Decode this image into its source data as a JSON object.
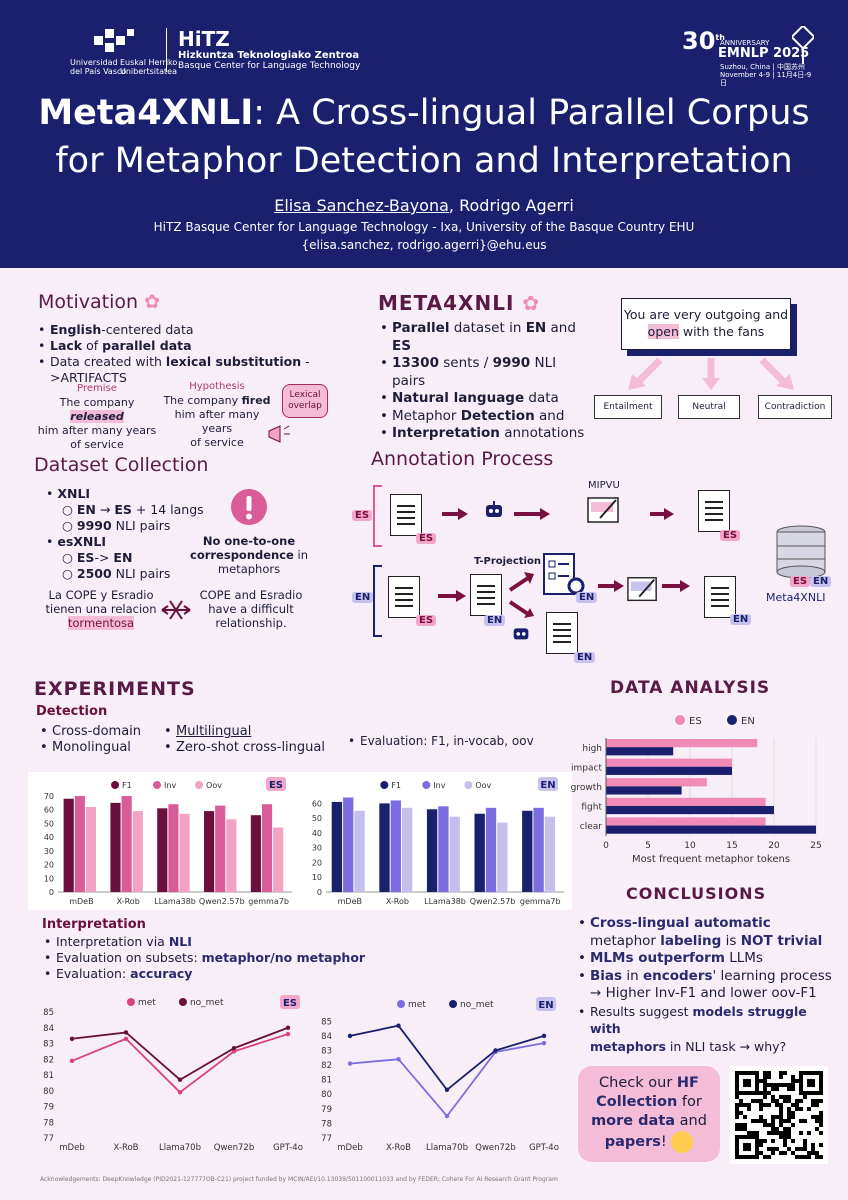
{
  "header": {
    "upv_logo_left": "Universidad\ndel País Vasco",
    "upv_logo_right": "Euskal Herriko\nUnibertsitatea",
    "hitz_name": "HiTZ",
    "hitz_line1": "Hizkuntza Teknologiako Zentroa",
    "hitz_line2": "Basque Center for Language Technology",
    "emnlp_anniv": "30",
    "emnlp_anniv_sup": "th",
    "emnlp_anniv_word": "ANNIVERSARY",
    "emnlp_name": "EMNLP 2025",
    "emnlp_loc": "Suzhou, China | 中国苏州",
    "emnlp_date": "November 4-9 | 11月4日-9日",
    "title_bold": "Meta4XNLI",
    "title_rest": ": A Cross-lingual Parallel Corpus",
    "title_line2": "for Metaphor Detection and Interpretation",
    "author1": "Elisa Sanchez-Bayona",
    "author_sep": ", Rodrigo Agerri",
    "affiliation": "HiTZ Basque Center for Language Technology - Ixa, University of the Basque Country EHU",
    "emails": "{elisa.sanchez, rodrigo.agerri}@ehu.eus"
  },
  "motivation": {
    "title": "Motivation",
    "items": [
      {
        "b": "English",
        "t": "-centered data"
      },
      {
        "p": "",
        "b": "Lack",
        "t": " of "
      },
      {
        "b": "",
        "t": "Data created with "
      }
    ],
    "i1": [
      "English",
      "-centered data"
    ],
    "i2": [
      "Lack",
      " of ",
      "parallel data"
    ],
    "i3": [
      "Data created with ",
      "lexical substitution",
      " ->ARTIFACTS"
    ],
    "premise_label": "Premise",
    "premise_a": "The company ",
    "premise_b": "released",
    "premise_c": "him after many years",
    "premise_d": "of service",
    "hyp_label": "Hypothesis",
    "hyp_a": "The company ",
    "hyp_b": "fired",
    "hyp_c": "him after many years",
    "hyp_d": "of service",
    "overlap": "Lexical\noverlap"
  },
  "meta": {
    "title": "META4XNLI",
    "i1": [
      "Parallel",
      " dataset in ",
      "EN",
      " and ",
      "ES"
    ],
    "i2": [
      "13300",
      " sents / ",
      "9990",
      " NLI pairs"
    ],
    "i3": [
      "Natural language",
      " data"
    ],
    "i4": [
      "Metaphor ",
      "Detection",
      " and"
    ],
    "i5": [
      "Interpretation",
      " annotations"
    ],
    "example_a": "You are very outgoing and",
    "example_b": "open",
    "example_c": " with the fans",
    "ent": "Entailment",
    "neu": "Neutral",
    "con": "Contradiction"
  },
  "collection": {
    "title": "Dataset Collection",
    "xnli": "XNLI",
    "x1a": "EN",
    "x1b": " → ",
    "x1c": "ES",
    "x1d": " + 14 langs",
    "x2a": "9990",
    "x2b": " NLI pairs",
    "esxnli": "esXNLI",
    "e1a": "ES",
    "e1b": "-> ",
    "e1c": "EN",
    "e2a": "2500",
    "e2b": " NLI pairs",
    "warn_a": "No one-to-one",
    "warn_b": "correspondence",
    "warn_c": " in",
    "warn_d": "metaphors",
    "es_ex1": "La COPE y Esradio",
    "es_ex2": "tienen una relacion",
    "es_ex3": "tormentosa",
    "en_ex1": "COPE and Esradio",
    "en_ex2": "have a difficult",
    "en_ex3": "relationship."
  },
  "annotation": {
    "title": "Annotation Process",
    "mipvu": "MIPVU",
    "tproj": "T-Projection",
    "es": "ES",
    "en": "EN",
    "esen": "ES EN",
    "meta": "Meta4XNLI"
  },
  "experiments": {
    "title": "EXPERIMENTS",
    "detection": "Detection",
    "d1": "Cross-domain",
    "d2": "Monolingual",
    "d3": "Multilingual",
    "d4": "Zero-shot cross-lingual",
    "d5": "Evaluation: F1, in-vocab, oov",
    "interp": "Interpretation",
    "p1a": "Interpretation via ",
    "p1b": "NLI",
    "p2a": "Evaluation on subsets: ",
    "p2b": "metaphor/no metaphor",
    "p3a": "Evaluation: ",
    "p3b": "accuracy"
  },
  "analysis": {
    "title": "DATA ANALYSIS"
  },
  "conclusions": {
    "title": "CONCLUSIONS",
    "c1": [
      "Cross-lingual automatic",
      " metaphor ",
      "labeling",
      " is ",
      "NOT trivial"
    ],
    "c2": [
      "MLMs outperform",
      " LLMs"
    ],
    "c3": [
      "Bias",
      " in ",
      "encoders",
      "' learning process"
    ],
    "c3b": "→ Higher Inv-F1 and lower oov-F1",
    "c4": [
      "Results suggest ",
      "models struggle with",
      "metaphors",
      " in NLI task → why?"
    ],
    "hf_a": "Check our ",
    "hf_b": "HF",
    "hf_c": "Collection",
    " hf_d": " for",
    "hf_e": "more data",
    " hf_f": " and",
    "hf_g": "papers",
    "hf_h": "!"
  },
  "ack": "Acknowledgements: DeepKnowledge (PID2021-127777OB-C21) project funded by MCIN/AEI/10.13039/501100011033 and by FEDER; Cohere For AI Research Grant Program",
  "chart_data": [
    {
      "type": "bar",
      "lang": "ES",
      "categories": [
        "mDeB",
        "X-Rob",
        "LLama38b",
        "Qwen2.57b",
        "gemma7b"
      ],
      "yticks": [
        0,
        10,
        20,
        30,
        40,
        50,
        60,
        70
      ],
      "ylim": [
        0,
        70
      ],
      "series": [
        {
          "name": "F1",
          "color": "#6b0f3c",
          "values": [
            68,
            65,
            61,
            59,
            56
          ]
        },
        {
          "name": "Inv",
          "color": "#d95c98",
          "values": [
            70,
            70,
            64,
            63,
            64
          ]
        },
        {
          "name": "Oov",
          "color": "#f2a2c4",
          "values": [
            62,
            59,
            57,
            53,
            47
          ]
        }
      ]
    },
    {
      "type": "bar",
      "lang": "EN",
      "categories": [
        "mDeB",
        "X-Rob",
        "LLama38b",
        "Qwen2.57b",
        "gemma7b"
      ],
      "yticks": [
        0,
        10,
        20,
        30,
        40,
        50,
        60
      ],
      "ylim": [
        0,
        65
      ],
      "series": [
        {
          "name": "F1",
          "color": "#1a1f6e",
          "values": [
            61,
            60,
            56,
            53,
            55
          ]
        },
        {
          "name": "Inv",
          "color": "#7c6ee0",
          "values": [
            64,
            62,
            58,
            57,
            57
          ]
        },
        {
          "name": "Oov",
          "color": "#c5bfec",
          "values": [
            55,
            57,
            51,
            47,
            51
          ]
        }
      ]
    },
    {
      "type": "bar",
      "orientation": "horizontal",
      "categories": [
        "high",
        "impact",
        "growth",
        "fight",
        "clear"
      ],
      "xticks": [
        0,
        5,
        10,
        15,
        20,
        25
      ],
      "xlim": [
        0,
        25
      ],
      "xlabel": "Most frequent metaphor tokens",
      "series": [
        {
          "name": "ES",
          "color": "#f08ab7",
          "values": [
            18,
            15,
            12,
            19,
            19
          ]
        },
        {
          "name": "EN",
          "color": "#1a1f6e",
          "values": [
            8,
            15,
            9,
            20,
            25
          ]
        }
      ]
    },
    {
      "type": "line",
      "lang": "ES",
      "categories": [
        "mDeb",
        "X-RoB",
        "Llama70b",
        "Qwen72b",
        "GPT-4o"
      ],
      "yticks": [
        77,
        78,
        79,
        80,
        81,
        82,
        83,
        84,
        85
      ],
      "ylim": [
        77,
        85
      ],
      "series": [
        {
          "name": "met",
          "color": "#d9427f",
          "values": [
            81.9,
            83.3,
            79.9,
            82.5,
            83.6
          ]
        },
        {
          "name": "no_met",
          "color": "#6b0f3c",
          "values": [
            83.3,
            83.7,
            80.7,
            82.7,
            84.0
          ]
        }
      ]
    },
    {
      "type": "line",
      "lang": "EN",
      "categories": [
        "mDeb",
        "X-RoB",
        "Llama70b",
        "Qwen72b",
        "GPT-4o"
      ],
      "yticks": [
        77,
        78,
        79,
        80,
        81,
        82,
        83,
        84,
        85
      ],
      "ylim": [
        77,
        85.5
      ],
      "series": [
        {
          "name": "met",
          "color": "#7c6ee0",
          "values": [
            82.1,
            82.4,
            78.5,
            82.9,
            83.5
          ]
        },
        {
          "name": "no_met",
          "color": "#1a1f6e",
          "values": [
            84.0,
            84.7,
            80.3,
            83.0,
            84.0
          ]
        }
      ]
    }
  ]
}
